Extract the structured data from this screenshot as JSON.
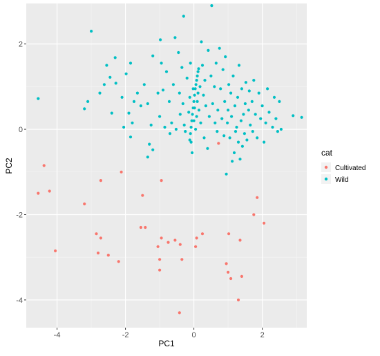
{
  "chart_data": {
    "type": "scatter",
    "title": "",
    "xlabel": "PC1",
    "ylabel": "PC2",
    "xlim": [
      -4.9,
      3.3
    ],
    "ylim": [
      -4.65,
      2.95
    ],
    "x_ticks": [
      -4,
      -2,
      0,
      2
    ],
    "x_tick_labels": [
      "-4",
      "-2",
      "0",
      "2"
    ],
    "y_ticks": [
      -4,
      -2,
      0,
      2
    ],
    "y_tick_labels": [
      "-4",
      "-2",
      "0",
      "2"
    ],
    "grid": true,
    "legend_placement": "right",
    "legend_title": "cat",
    "series": [
      {
        "name": "Cultivated",
        "color": "#F8766D",
        "points": [
          [
            -4.55,
            -1.5
          ],
          [
            -4.38,
            -0.85
          ],
          [
            -4.22,
            -1.45
          ],
          [
            -4.05,
            -2.85
          ],
          [
            -3.2,
            -1.75
          ],
          [
            -2.85,
            -2.45
          ],
          [
            -2.72,
            -2.55
          ],
          [
            -2.8,
            -2.9
          ],
          [
            -2.72,
            -1.2
          ],
          [
            -2.5,
            -2.95
          ],
          [
            -2.2,
            -3.1
          ],
          [
            -2.12,
            -1.0
          ],
          [
            -1.55,
            -2.3
          ],
          [
            -1.5,
            -1.55
          ],
          [
            -1.42,
            -2.3
          ],
          [
            -1.05,
            -2.75
          ],
          [
            -1.0,
            -3.05
          ],
          [
            -1.0,
            -3.3
          ],
          [
            -0.95,
            -2.55
          ],
          [
            -0.95,
            -1.2
          ],
          [
            -0.75,
            -2.65
          ],
          [
            -0.55,
            -2.6
          ],
          [
            -0.4,
            -2.7
          ],
          [
            -0.35,
            -3.05
          ],
          [
            -0.42,
            -4.3
          ],
          [
            0.05,
            -2.75
          ],
          [
            0.08,
            -2.55
          ],
          [
            0.25,
            -2.45
          ],
          [
            0.72,
            -0.33
          ],
          [
            0.95,
            -3.15
          ],
          [
            1.0,
            -3.35
          ],
          [
            1.02,
            -2.45
          ],
          [
            1.08,
            -3.5
          ],
          [
            1.3,
            -4.0
          ],
          [
            1.35,
            -2.6
          ],
          [
            1.4,
            -3.45
          ],
          [
            1.75,
            -2.0
          ],
          [
            1.85,
            -1.6
          ],
          [
            2.05,
            -2.2
          ]
        ]
      },
      {
        "name": "Wild",
        "color": "#00BFC4",
        "points": [
          [
            -4.55,
            0.72
          ],
          [
            -3.2,
            0.48
          ],
          [
            -3.1,
            0.65
          ],
          [
            -3.0,
            2.3
          ],
          [
            -2.75,
            0.85
          ],
          [
            -2.62,
            1.05
          ],
          [
            -2.55,
            1.5
          ],
          [
            -2.45,
            1.22
          ],
          [
            -2.4,
            0.38
          ],
          [
            -2.3,
            1.68
          ],
          [
            -2.28,
            1.08
          ],
          [
            -2.1,
            0.75
          ],
          [
            -2.05,
            0.05
          ],
          [
            -1.98,
            1.3
          ],
          [
            -1.9,
            0.38
          ],
          [
            -1.85,
            1.55
          ],
          [
            -1.8,
            0.15
          ],
          [
            -1.75,
            0.65
          ],
          [
            -1.85,
            -0.18
          ],
          [
            -1.65,
            0.85
          ],
          [
            -1.55,
            0.55
          ],
          [
            -1.45,
            1.05
          ],
          [
            -1.35,
            0.6
          ],
          [
            -1.3,
            -0.35
          ],
          [
            -1.35,
            -0.65
          ],
          [
            -1.25,
            0.1
          ],
          [
            -1.2,
            1.72
          ],
          [
            -1.2,
            -0.48
          ],
          [
            -1.05,
            0.85
          ],
          [
            -1.0,
            0.3
          ],
          [
            -0.98,
            2.1
          ],
          [
            -0.95,
            1.55
          ],
          [
            -0.9,
            0.92
          ],
          [
            -0.85,
            0.05
          ],
          [
            -0.8,
            1.35
          ],
          [
            -0.72,
            0.65
          ],
          [
            -0.7,
            -0.1
          ],
          [
            -0.65,
            0.15
          ],
          [
            -0.6,
            1.05
          ],
          [
            -0.55,
            2.15
          ],
          [
            -0.52,
            0.0
          ],
          [
            -0.45,
            1.8
          ],
          [
            -0.42,
            0.85
          ],
          [
            -0.4,
            0.35
          ],
          [
            -0.35,
            1.45
          ],
          [
            -0.32,
            0.6
          ],
          [
            -0.3,
            2.65
          ],
          [
            -0.28,
            0.1
          ],
          [
            -0.25,
            -0.05
          ],
          [
            -0.2,
            1.2
          ],
          [
            -0.15,
            0.4
          ],
          [
            -0.12,
            0.75
          ],
          [
            -0.1,
            1.55
          ],
          [
            -0.08,
            -0.3
          ],
          [
            -0.05,
            -0.55
          ],
          [
            -0.02,
            0.95
          ],
          [
            0.0,
            0.2
          ],
          [
            0.02,
            0.5
          ],
          [
            0.05,
            0.0
          ],
          [
            0.08,
            0.3
          ],
          [
            0.1,
            0.65
          ],
          [
            0.12,
            0.85
          ],
          [
            0.15,
            0.45
          ],
          [
            0.18,
            1.0
          ],
          [
            0.2,
            0.15
          ],
          [
            0.22,
            2.05
          ],
          [
            0.25,
            1.5
          ],
          [
            0.28,
            0.8
          ],
          [
            0.3,
            -0.2
          ],
          [
            0.32,
            1.15
          ],
          [
            0.35,
            0.55
          ],
          [
            0.4,
            -0.45
          ],
          [
            0.42,
            1.85
          ],
          [
            0.45,
            0.3
          ],
          [
            0.5,
            1.25
          ],
          [
            0.52,
            2.9
          ],
          [
            0.55,
            0.6
          ],
          [
            0.6,
            1.0
          ],
          [
            0.62,
            0.15
          ],
          [
            0.65,
            1.55
          ],
          [
            0.68,
            -0.05
          ],
          [
            0.7,
            0.45
          ],
          [
            0.75,
            1.9
          ],
          [
            0.78,
            0.95
          ],
          [
            0.82,
            0.25
          ],
          [
            0.85,
            1.4
          ],
          [
            0.88,
            -0.15
          ],
          [
            0.9,
            0.65
          ],
          [
            0.92,
            1.7
          ],
          [
            0.95,
            -1.05
          ],
          [
            0.98,
            0.15
          ],
          [
            1.0,
            0.45
          ],
          [
            1.02,
            1.05
          ],
          [
            1.05,
            -0.2
          ],
          [
            1.08,
            0.85
          ],
          [
            1.1,
            0.3
          ],
          [
            1.12,
            -0.75
          ],
          [
            1.15,
            1.25
          ],
          [
            1.18,
            -0.55
          ],
          [
            1.2,
            0.55
          ],
          [
            1.22,
            -0.05
          ],
          [
            1.25,
            0.05
          ],
          [
            1.28,
            0.75
          ],
          [
            1.3,
            -0.3
          ],
          [
            1.32,
            1.5
          ],
          [
            1.35,
            -0.7
          ],
          [
            1.38,
            0.2
          ],
          [
            1.4,
            0.95
          ],
          [
            1.42,
            -0.4
          ],
          [
            1.45,
            0.35
          ],
          [
            1.48,
            -0.1
          ],
          [
            1.5,
            0.6
          ],
          [
            1.52,
            1.1
          ],
          [
            1.55,
            -0.25
          ],
          [
            1.6,
            0.45
          ],
          [
            1.62,
            0.9
          ],
          [
            1.65,
            0.1
          ],
          [
            1.7,
            0.65
          ],
          [
            1.72,
            -0.05
          ],
          [
            1.75,
            1.15
          ],
          [
            1.8,
            0.35
          ],
          [
            1.85,
            -0.2
          ],
          [
            1.9,
            0.85
          ],
          [
            1.95,
            0.25
          ],
          [
            2.0,
            0.55
          ],
          [
            2.05,
            -0.3
          ],
          [
            2.1,
            0.15
          ],
          [
            2.15,
            0.95
          ],
          [
            2.2,
            0.4
          ],
          [
            2.3,
            0.05
          ],
          [
            2.35,
            0.75
          ],
          [
            2.4,
            0.25
          ],
          [
            2.45,
            -0.05
          ],
          [
            2.5,
            0.65
          ],
          [
            2.55,
            0.0
          ],
          [
            2.9,
            0.32
          ],
          [
            3.15,
            0.28
          ]
        ]
      },
      {
        "name": "Wild",
        "color": "#00BFC4",
        "points": [
          [
            -0.12,
            -0.25
          ],
          [
            -0.1,
            -0.1
          ],
          [
            -0.08,
            0.05
          ],
          [
            -0.06,
            0.2
          ],
          [
            -0.04,
            0.35
          ],
          [
            -0.02,
            0.5
          ],
          [
            0.0,
            0.65
          ],
          [
            0.02,
            0.8
          ],
          [
            0.04,
            0.95
          ],
          [
            0.06,
            1.05
          ],
          [
            0.08,
            1.15
          ],
          [
            0.1,
            1.25
          ],
          [
            0.12,
            1.35
          ],
          [
            0.14,
            1.42
          ]
        ]
      }
    ],
    "legend": [
      {
        "label": "Cultivated",
        "color": "#F8766D"
      },
      {
        "label": "Wild",
        "color": "#00BFC4"
      }
    ]
  }
}
